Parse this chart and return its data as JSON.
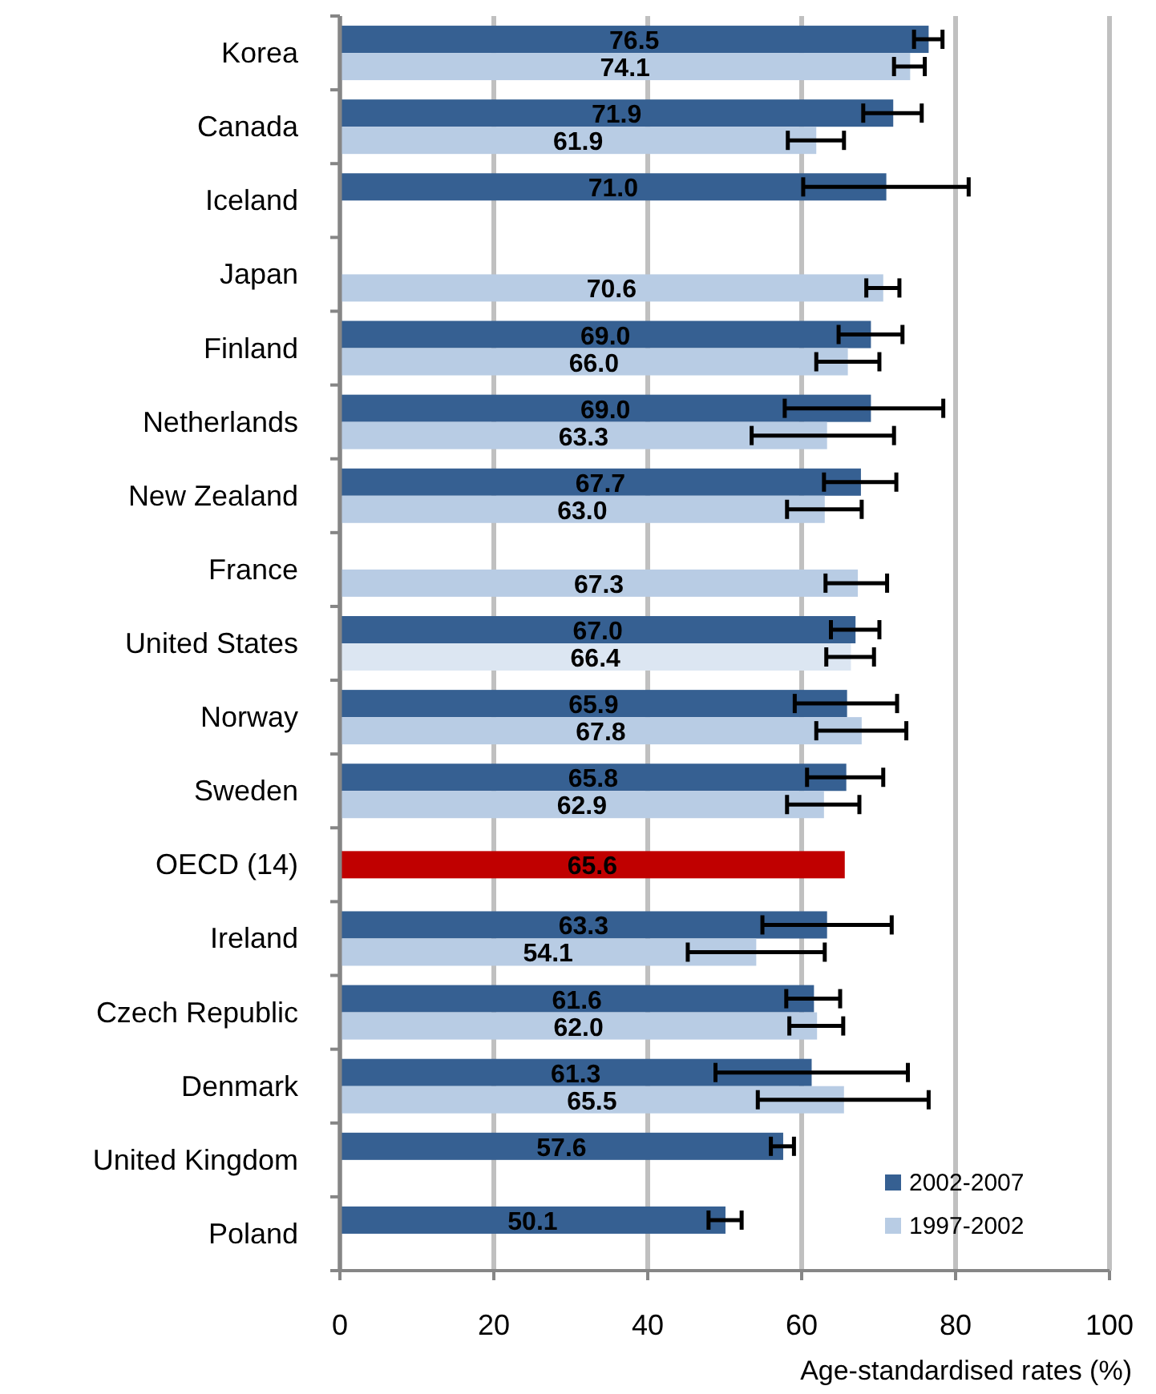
{
  "chart_data": {
    "type": "bar",
    "orientation": "horizontal",
    "xlabel": "Age-standardised rates (%)",
    "categories": [
      "Korea",
      "Canada",
      "Iceland",
      "Japan",
      "Finland",
      "Netherlands",
      "New Zealand",
      "France",
      "United States",
      "Norway",
      "Sweden",
      "OECD (14)",
      "Ireland",
      "Czech Republic",
      "Denmark",
      "United Kingdom",
      "Poland"
    ],
    "series": [
      {
        "name": "2002-2007",
        "color": "#366092",
        "values": [
          76.5,
          71.9,
          71.0,
          null,
          69.0,
          69.0,
          67.7,
          null,
          67.0,
          65.9,
          65.8,
          null,
          63.3,
          61.6,
          61.3,
          57.6,
          50.1
        ],
        "value_labels": [
          "76.5",
          "71.9",
          "71.0",
          null,
          "69.0",
          "69.0",
          "67.7",
          null,
          "67.0",
          "65.9",
          "65.8",
          null,
          "63.3",
          "61.6",
          "61.3",
          "57.6",
          "50.1"
        ],
        "errors": [
          [
            74.6,
            78.3
          ],
          [
            68.0,
            75.6
          ],
          [
            60.2,
            81.7
          ],
          null,
          [
            64.8,
            73.1
          ],
          [
            57.8,
            78.4
          ],
          [
            62.9,
            72.3
          ],
          null,
          [
            63.8,
            70.1
          ],
          [
            59.1,
            72.4
          ],
          [
            60.7,
            70.6
          ],
          null,
          [
            54.9,
            71.7
          ],
          [
            58.0,
            65.0
          ],
          [
            48.8,
            73.8
          ],
          [
            56.0,
            59.0
          ],
          [
            47.9,
            52.2
          ]
        ]
      },
      {
        "name": "1997-2002",
        "color": "#b8cce4",
        "colors": [
          "#b8cce4",
          "#b8cce4",
          null,
          "#b8cce4",
          "#b8cce4",
          "#b8cce4",
          "#b8cce4",
          "#b8cce4",
          "#dce6f2",
          "#b8cce4",
          "#b8cce4",
          null,
          "#b8cce4",
          "#b8cce4",
          "#b8cce4",
          null,
          null
        ],
        "values": [
          74.1,
          61.9,
          null,
          70.6,
          66.0,
          63.3,
          63.0,
          67.3,
          66.4,
          67.8,
          62.9,
          null,
          54.1,
          62.0,
          65.5,
          null,
          null
        ],
        "value_labels": [
          "74.1",
          "61.9",
          null,
          "70.6",
          "66.0",
          "63.3",
          "63.0",
          "67.3",
          "66.4",
          "67.8",
          "62.9",
          null,
          "54.1",
          "62.0",
          "65.5",
          null,
          null
        ],
        "errors": [
          [
            72.0,
            76.0
          ],
          [
            58.2,
            65.5
          ],
          null,
          [
            68.4,
            72.7
          ],
          [
            61.9,
            70.1
          ],
          [
            53.5,
            72.0
          ],
          [
            58.1,
            67.8
          ],
          [
            63.1,
            71.1
          ],
          [
            63.2,
            69.4
          ],
          [
            61.9,
            73.6
          ],
          [
            58.1,
            67.5
          ],
          null,
          [
            45.2,
            63.0
          ],
          [
            58.4,
            65.4
          ],
          [
            54.3,
            76.5
          ],
          null,
          null
        ]
      },
      {
        "color": "#c00000",
        "values": [
          null,
          null,
          null,
          null,
          null,
          null,
          null,
          null,
          null,
          null,
          null,
          65.6,
          null,
          null,
          null,
          null,
          null
        ],
        "value_labels": [
          null,
          null,
          null,
          null,
          null,
          null,
          null,
          null,
          null,
          null,
          null,
          "65.6",
          null,
          null,
          null,
          null,
          null
        ]
      }
    ],
    "xlim": [
      0,
      100
    ],
    "xticks": [
      0,
      20,
      40,
      60,
      80,
      100
    ],
    "grid": "x",
    "legend": "bottom right"
  }
}
